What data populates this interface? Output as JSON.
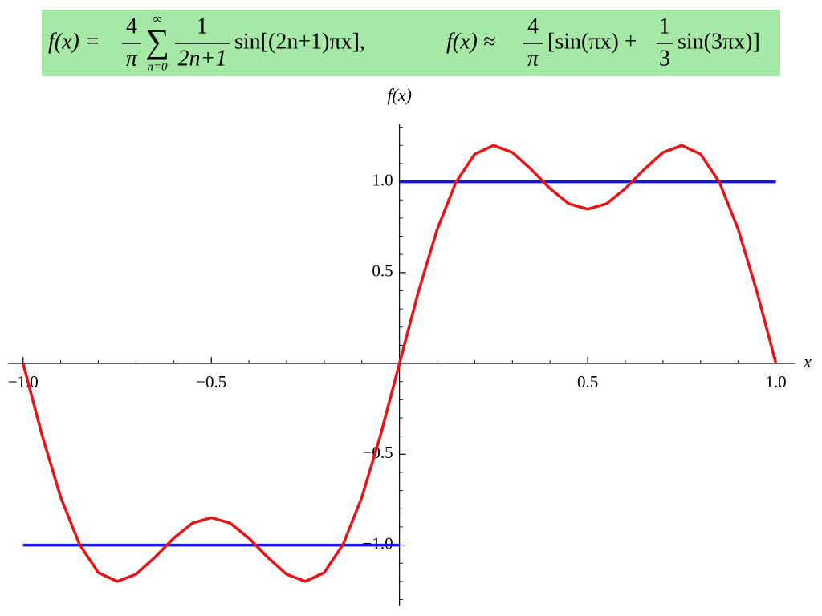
{
  "formula": {
    "left": [
      "f(x) =",
      "4",
      "π",
      "∑",
      "∞",
      "n=0",
      "1",
      "2n+1",
      "sin[(2n+1)πx],"
    ],
    "right": [
      "f(x) ≈",
      "4",
      "π",
      "[sin(πx) +",
      "1",
      "3",
      "sin(3πx)]"
    ]
  },
  "chart_data": {
    "type": "line",
    "x_label": "x",
    "y_label": "f(x)",
    "xlim": [
      -1.04,
      1.05
    ],
    "ylim": [
      -1.333,
      1.316
    ],
    "xticks": [
      {
        "value": -1,
        "label": "−1.0"
      },
      {
        "value": -0.5,
        "label": "−0.5"
      },
      {
        "value": 0.5,
        "label": "0.5"
      },
      {
        "value": 1,
        "label": "1.0"
      }
    ],
    "yticks": [
      {
        "value": -1,
        "label": "−1.0"
      },
      {
        "value": -0.5,
        "label": "−0.5"
      },
      {
        "value": 0.5,
        "label": "0.5"
      },
      {
        "value": 1,
        "label": "1.0"
      }
    ],
    "xminorticks": [
      -0.9,
      -0.8,
      -0.7,
      -0.6,
      -0.4,
      -0.3,
      -0.2,
      -0.1,
      0.1,
      0.2,
      0.3,
      0.4,
      0.6,
      0.7,
      0.8,
      0.9
    ],
    "yminorticks": [
      -1.3,
      -1.2,
      -1.1,
      -0.9,
      -0.8,
      -0.7,
      -0.6,
      -0.4,
      -0.3,
      -0.2,
      -0.1,
      0.1,
      0.2,
      0.3,
      0.4,
      0.6,
      0.7,
      0.8,
      0.9,
      1.1,
      1.2,
      1.3
    ],
    "series": [
      {
        "color": "#1414e6",
        "x": [
          -1,
          0
        ],
        "values": [
          -1,
          -1
        ]
      },
      {
        "color": "#1414e6",
        "x": [
          0,
          1
        ],
        "values": [
          1,
          1
        ]
      },
      {
        "color": "#e61414",
        "x": [
          -1,
          -0.95,
          -0.9,
          -0.85,
          -0.8,
          -0.75,
          -0.7,
          -0.65,
          -0.6,
          -0.55,
          -0.5,
          -0.45,
          -0.4,
          -0.35,
          -0.3,
          -0.25,
          -0.2,
          -0.15,
          -0.1,
          -0.05,
          0,
          0.05,
          0.1,
          0.15,
          0.2,
          0.25,
          0.3,
          0.35,
          0.4,
          0.45,
          0.5,
          0.55,
          0.6,
          0.65,
          0.7,
          0.75,
          0.8,
          0.85,
          0.9,
          0.95,
          1
        ],
        "values": [
          0,
          -0.392,
          -0.737,
          -0.997,
          -1.152,
          -1.2,
          -1.161,
          -1.068,
          -0.962,
          -0.879,
          -0.849,
          -0.879,
          -0.962,
          -1.068,
          -1.161,
          -1.2,
          -1.152,
          -0.997,
          -0.737,
          -0.392,
          0,
          0.392,
          0.737,
          0.997,
          1.152,
          1.2,
          1.161,
          1.068,
          0.962,
          0.879,
          0.849,
          0.879,
          0.962,
          1.068,
          1.161,
          1.2,
          1.152,
          0.997,
          0.737,
          0.392,
          0
        ]
      }
    ]
  }
}
